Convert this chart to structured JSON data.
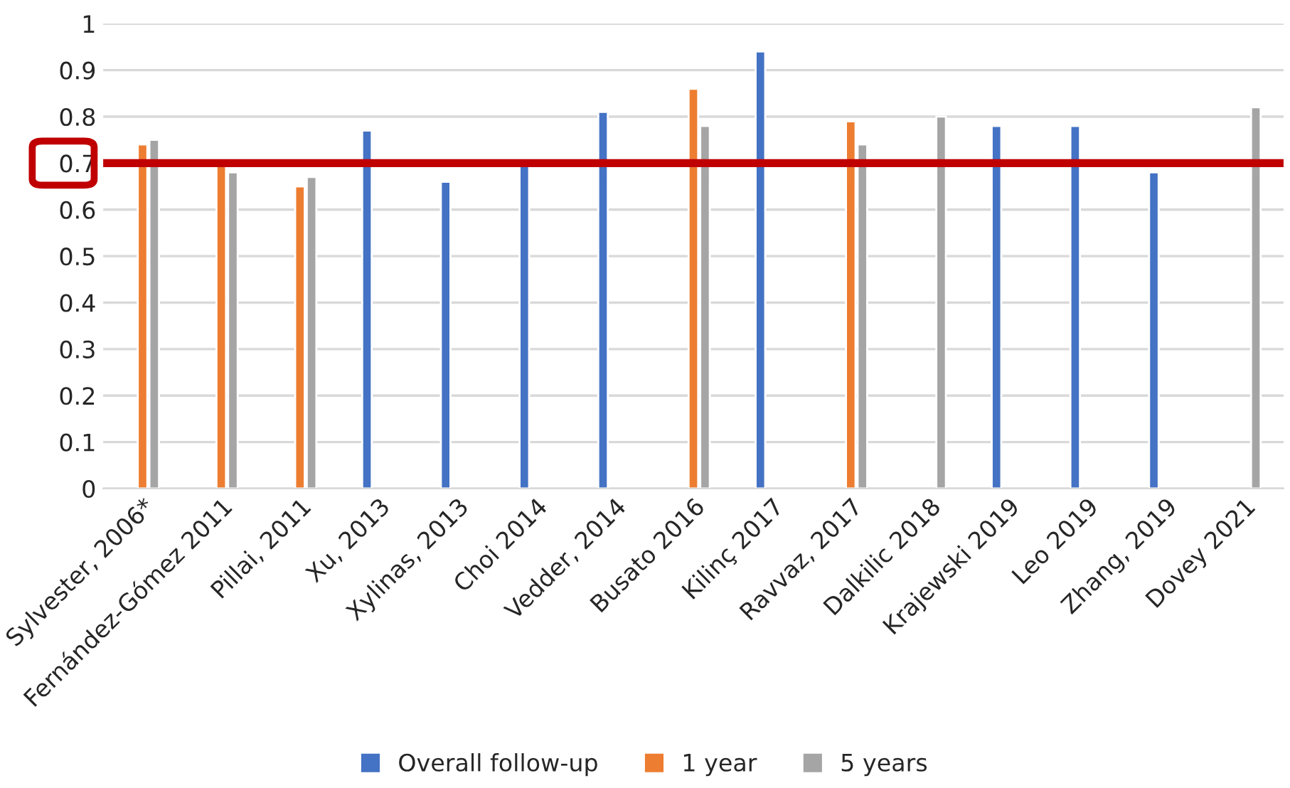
{
  "chart_data": {
    "type": "bar",
    "categories": [
      "Sylvester, 2006*",
      "Fernández-Gómez 2011",
      "Pillai, 2011",
      "Xu, 2013",
      "Xylinas, 2013",
      "Choi 2014",
      "Vedder, 2014",
      "Busato 2016",
      "Kilinç 2017",
      "Ravvaz, 2017",
      "Dalkilic 2018",
      "Krajewski 2019",
      "Leo 2019",
      "Zhang, 2019",
      "Dovey 2021"
    ],
    "series": [
      {
        "name": "Overall follow-up",
        "color": "#4472c4",
        "values": [
          null,
          null,
          null,
          0.77,
          0.66,
          0.7,
          0.81,
          null,
          0.94,
          null,
          null,
          0.78,
          0.78,
          0.68,
          null
        ]
      },
      {
        "name": "1 year",
        "color": "#ed7d31",
        "values": [
          0.74,
          0.7,
          0.65,
          null,
          null,
          null,
          null,
          0.86,
          null,
          0.79,
          null,
          null,
          null,
          null,
          null
        ]
      },
      {
        "name": "5 years",
        "color": "#a5a5a5",
        "values": [
          0.75,
          0.68,
          0.67,
          null,
          null,
          null,
          null,
          0.78,
          null,
          0.74,
          0.8,
          null,
          null,
          null,
          0.82
        ]
      }
    ],
    "ylim": [
      0,
      1
    ],
    "yticks": [
      0,
      0.1,
      0.2,
      0.3,
      0.4,
      0.5,
      0.6,
      0.7,
      0.8,
      0.9,
      1
    ],
    "ref_lines": [
      {
        "axis": "y",
        "value": 0.7,
        "color": "#c00000",
        "line_style": "solid"
      }
    ],
    "grid": "y",
    "legend": "bottom"
  }
}
